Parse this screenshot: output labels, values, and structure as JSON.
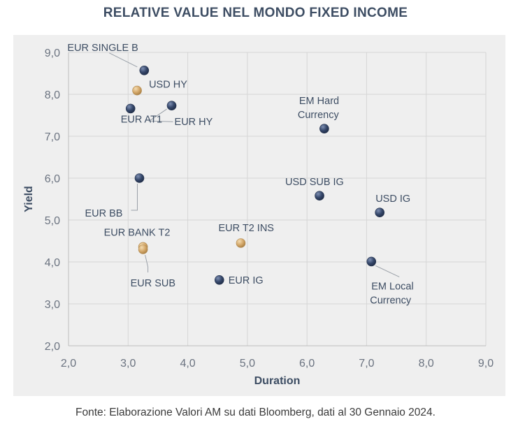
{
  "chart_data": {
    "type": "scatter",
    "title": "RELATIVE VALUE NEL MONDO FIXED INCOME",
    "xlabel": "Duration",
    "ylabel": "Yield",
    "xlim": [
      2.0,
      9.0
    ],
    "ylim": [
      2.0,
      9.0
    ],
    "xticks": [
      "2,0",
      "3,0",
      "4,0",
      "5,0",
      "6,0",
      "7,0",
      "8,0",
      "9,0"
    ],
    "yticks": [
      "2,0",
      "3,0",
      "4,0",
      "5,0",
      "6,0",
      "7,0",
      "8,0",
      "9,0"
    ],
    "grid": true,
    "colors": {
      "navy": "#35476a",
      "gold": "#d4a86a"
    },
    "points": [
      {
        "label": "EUR SINGLE B",
        "x": 3.27,
        "y": 8.57,
        "color": "navy"
      },
      {
        "label": "USD HY",
        "x": 3.15,
        "y": 8.09,
        "color": "gold"
      },
      {
        "label": "EUR AT1",
        "x": 3.04,
        "y": 7.66,
        "color": "navy"
      },
      {
        "label": "EUR HY",
        "x": 3.73,
        "y": 7.73,
        "color": "navy"
      },
      {
        "label": "EM Hard Currency",
        "x": 6.29,
        "y": 7.18,
        "color": "navy"
      },
      {
        "label": "EUR BB",
        "x": 3.19,
        "y": 6.0,
        "color": "navy"
      },
      {
        "label": "USD SUB IG",
        "x": 6.21,
        "y": 5.58,
        "color": "navy"
      },
      {
        "label": "USD IG",
        "x": 7.22,
        "y": 5.18,
        "color": "navy"
      },
      {
        "label": "EUR T2 INS",
        "x": 4.89,
        "y": 4.45,
        "color": "gold"
      },
      {
        "label": "EUR BANK T2",
        "x": 3.25,
        "y": 4.36,
        "color": "gold"
      },
      {
        "label": "EUR SUB",
        "x": 3.25,
        "y": 4.3,
        "color": "gold"
      },
      {
        "label": "EUR IG",
        "x": 4.53,
        "y": 3.57,
        "color": "navy"
      },
      {
        "label": "EM Local Currency",
        "x": 7.08,
        "y": 4.01,
        "color": "navy"
      }
    ]
  },
  "footer": {
    "source": "Fonte: Elaborazione Valori AM su dati Bloomberg, dati al 30 Gennaio 2024."
  }
}
